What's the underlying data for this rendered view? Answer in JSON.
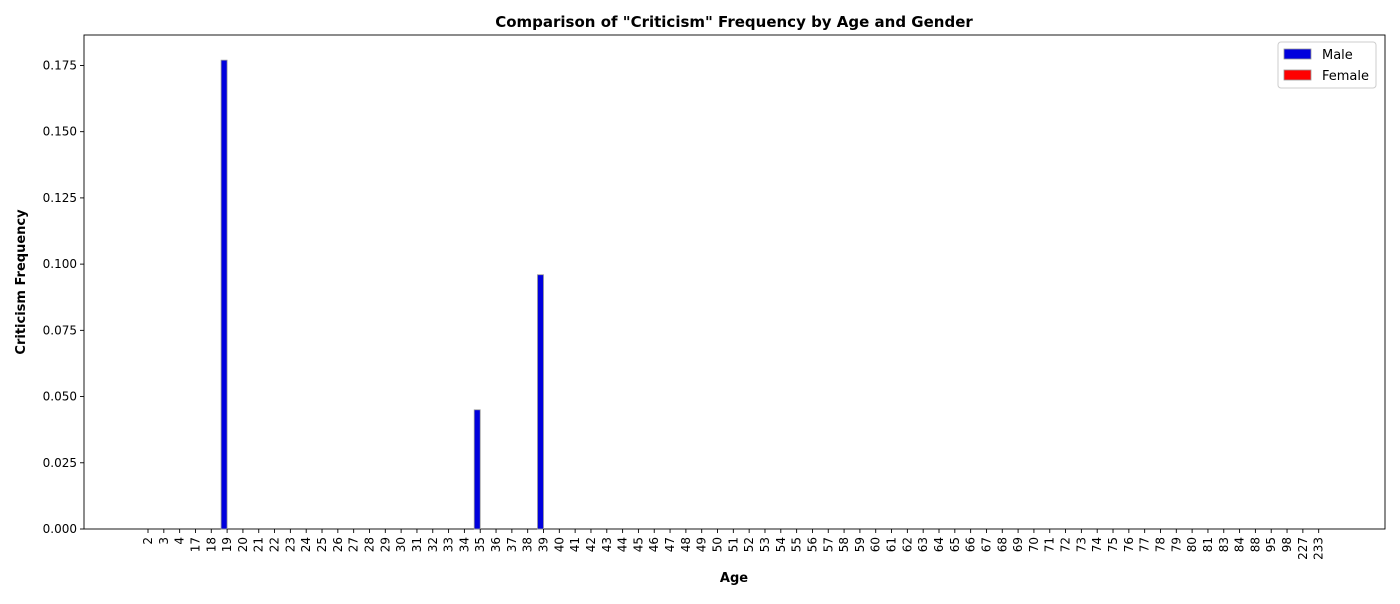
{
  "chart_data": {
    "type": "bar",
    "title": "Comparison of \"Criticism\" Frequency by Age and Gender",
    "xlabel": "Age",
    "ylabel": "Criticism Frequency",
    "categories": [
      "2",
      "3",
      "4",
      "17",
      "18",
      "19",
      "20",
      "21",
      "22",
      "23",
      "24",
      "25",
      "26",
      "27",
      "28",
      "29",
      "30",
      "31",
      "32",
      "33",
      "34",
      "35",
      "36",
      "37",
      "38",
      "39",
      "40",
      "41",
      "42",
      "43",
      "44",
      "45",
      "46",
      "47",
      "48",
      "49",
      "50",
      "51",
      "52",
      "53",
      "54",
      "55",
      "56",
      "57",
      "58",
      "59",
      "60",
      "61",
      "62",
      "63",
      "64",
      "65",
      "66",
      "67",
      "68",
      "69",
      "70",
      "71",
      "72",
      "73",
      "74",
      "75",
      "76",
      "77",
      "78",
      "79",
      "80",
      "81",
      "83",
      "84",
      "88",
      "95",
      "98",
      "227",
      "233"
    ],
    "ylim": [
      0,
      0.1865
    ],
    "yticks": [
      "0.000",
      "0.025",
      "0.050",
      "0.075",
      "0.100",
      "0.125",
      "0.150",
      "0.175"
    ],
    "ytick_values": [
      0,
      0.025,
      0.05,
      0.075,
      0.1,
      0.125,
      0.15,
      0.175
    ],
    "grid": false,
    "legend_position": "top-right",
    "series": [
      {
        "name": "Male",
        "color": "#0000dd",
        "values": [
          0,
          0,
          0,
          0,
          0,
          0.177,
          0,
          0,
          0,
          0,
          0,
          0,
          0,
          0,
          0,
          0,
          0,
          0,
          0,
          0,
          0,
          0.045,
          0,
          0,
          0,
          0.096,
          0,
          0,
          0,
          0,
          0,
          0,
          0,
          0,
          0,
          0,
          0,
          0,
          0,
          0,
          0,
          0,
          0,
          0,
          0,
          0,
          0,
          0,
          0,
          0,
          0,
          0,
          0,
          0,
          0,
          0,
          0,
          0,
          0,
          0,
          0,
          0,
          0,
          0,
          0,
          0,
          0,
          0,
          0,
          0,
          0,
          0,
          0,
          0,
          0
        ]
      },
      {
        "name": "Female",
        "color": "#ff0000",
        "values": [
          0,
          0,
          0,
          0,
          0,
          0,
          0,
          0,
          0,
          0,
          0,
          0,
          0,
          0,
          0,
          0,
          0,
          0,
          0,
          0,
          0,
          0,
          0,
          0,
          0,
          0,
          0,
          0,
          0,
          0,
          0,
          0,
          0,
          0,
          0,
          0,
          0,
          0,
          0,
          0,
          0,
          0,
          0,
          0,
          0,
          0,
          0,
          0,
          0,
          0,
          0,
          0,
          0,
          0,
          0,
          0,
          0,
          0,
          0,
          0,
          0,
          0,
          0,
          0,
          0,
          0,
          0,
          0,
          0,
          0,
          0,
          0,
          0,
          0,
          0
        ]
      }
    ]
  }
}
